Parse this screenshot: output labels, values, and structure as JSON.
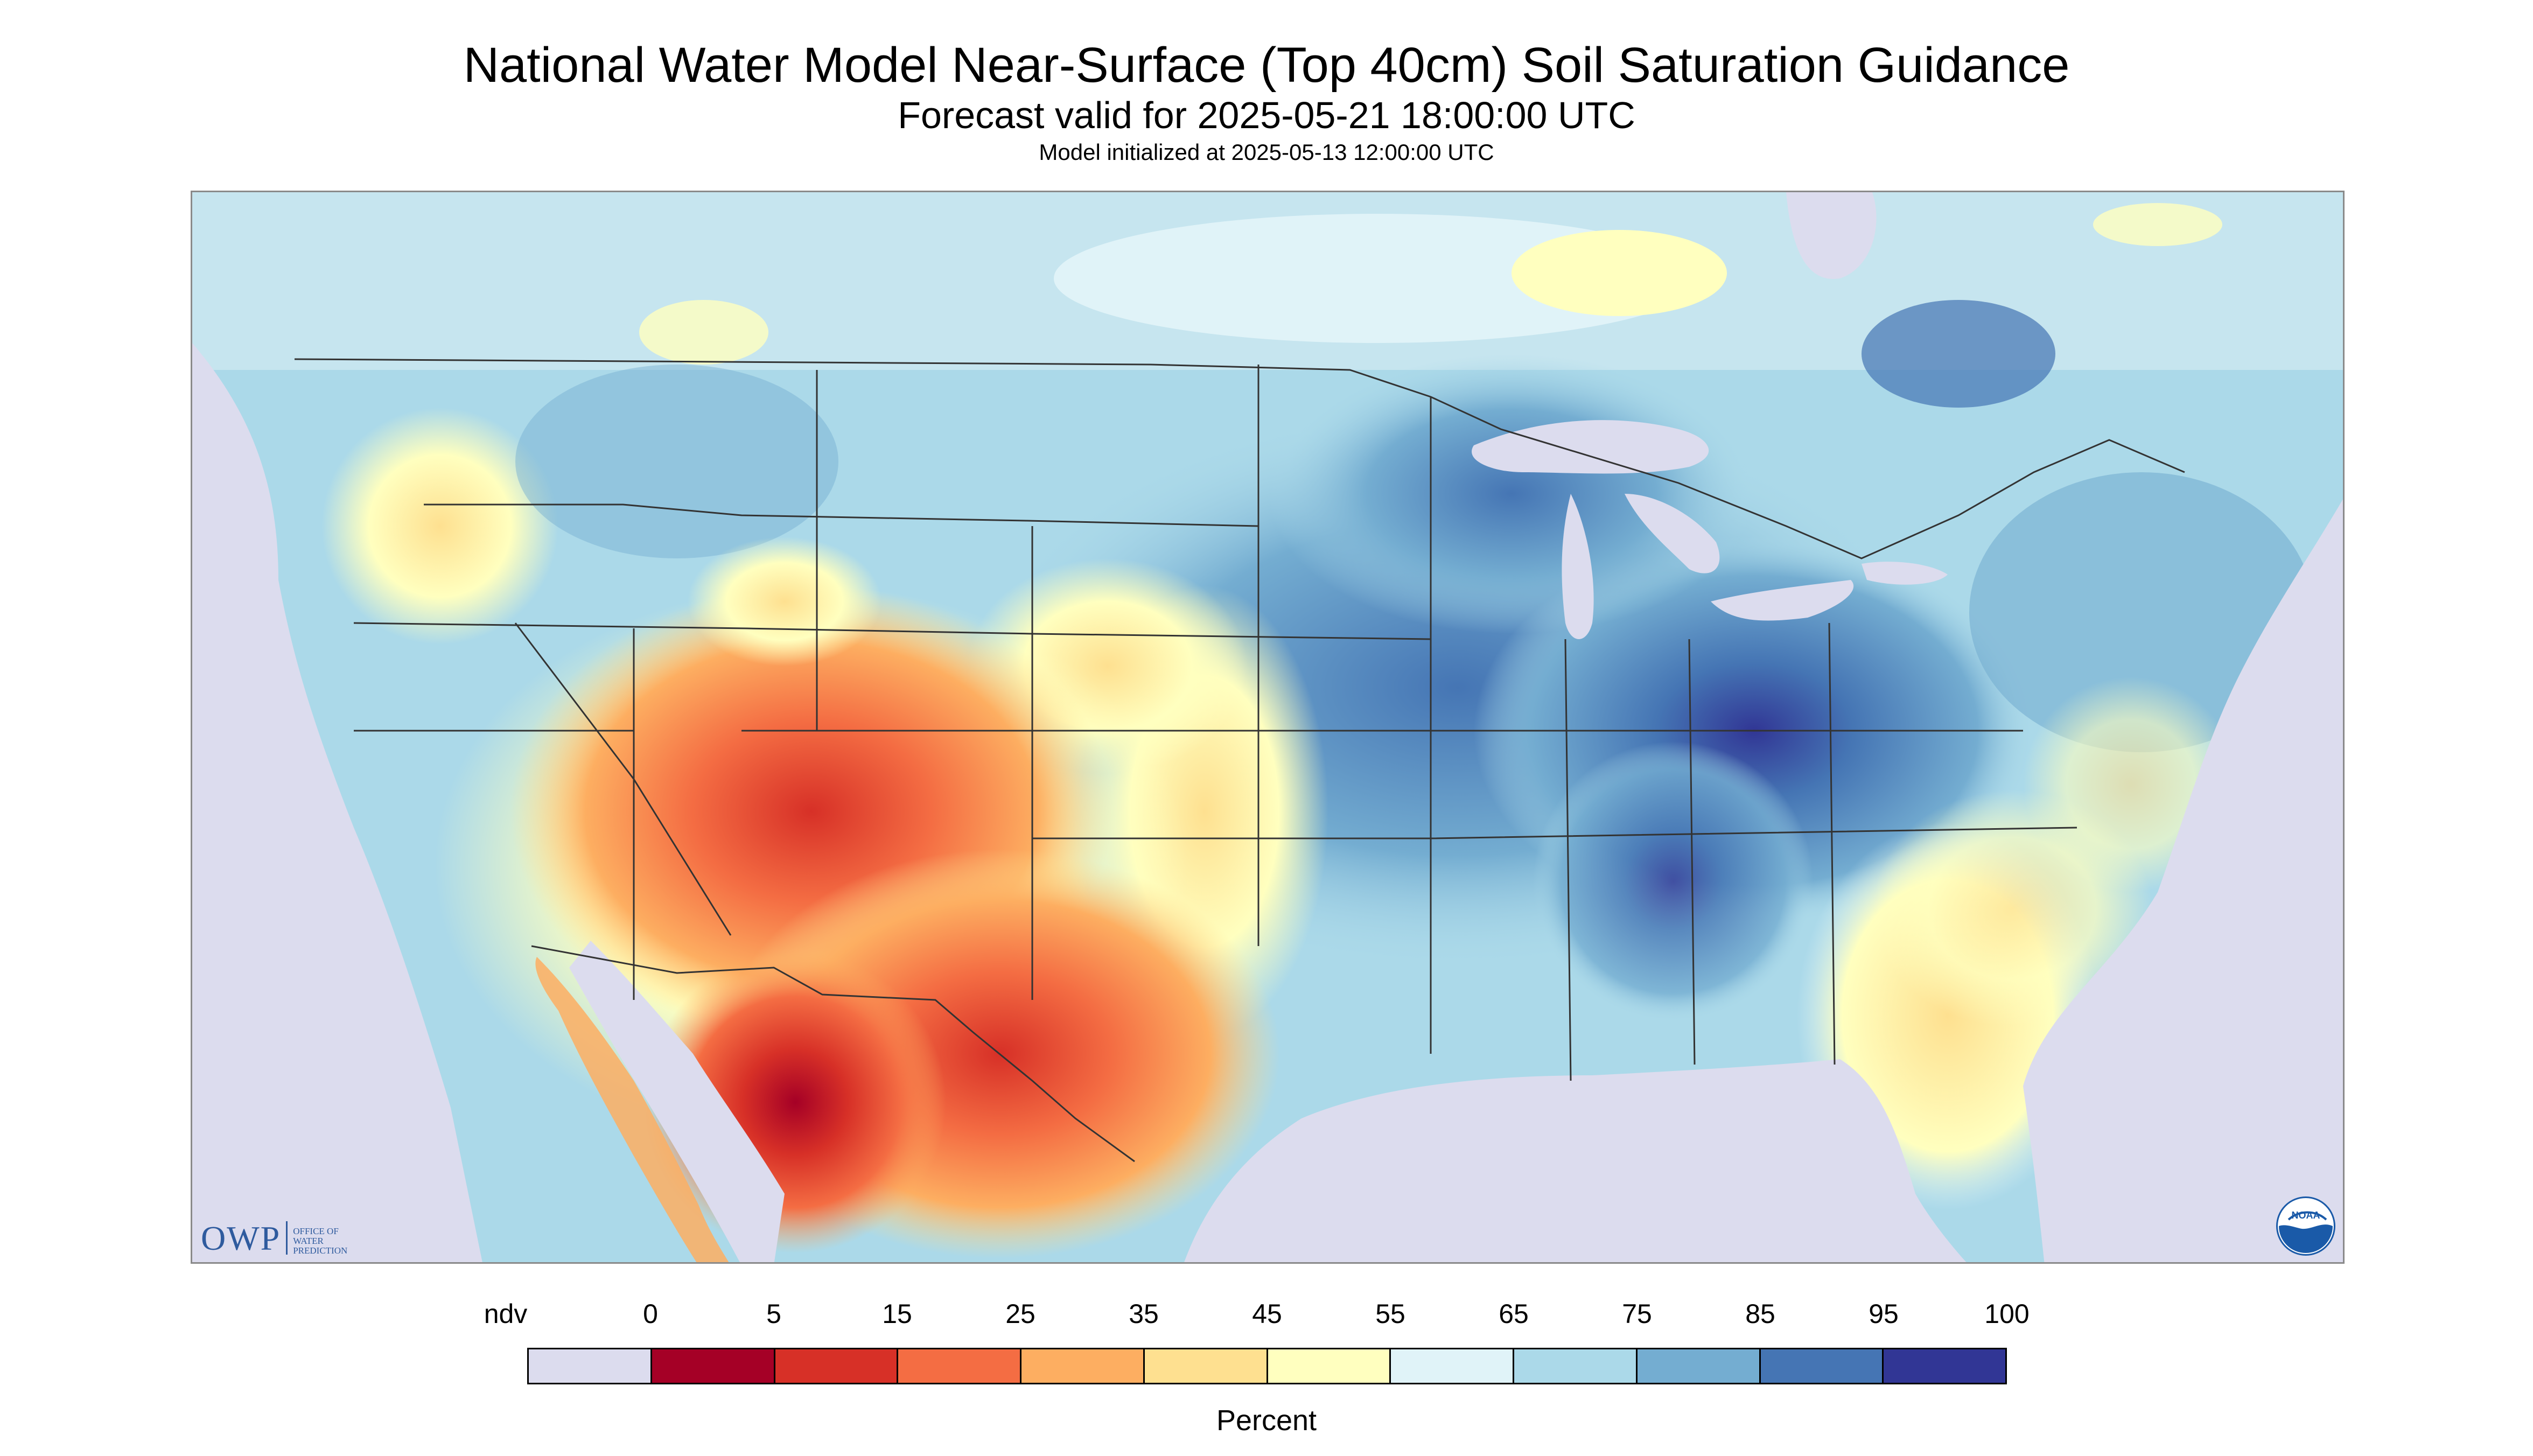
{
  "title": "National Water Model Near-Surface (Top 40cm) Soil Saturation Guidance",
  "subtitle": "Forecast valid for 2025-05-21 18:00:00 UTC",
  "init_line": "Model initialized at 2025-05-13 12:00:00 UTC",
  "logos": {
    "owp_abbrev": "OWP",
    "owp_full": [
      "OFFICE OF",
      "WATER",
      "PREDICTION"
    ],
    "noaa": "NOAA"
  },
  "legend": {
    "units_label": "Percent",
    "tick_labels": [
      "ndv",
      "0",
      "5",
      "15",
      "25",
      "35",
      "45",
      "55",
      "65",
      "75",
      "85",
      "95",
      "100"
    ],
    "colors": [
      "#dcdcee",
      "#a50026",
      "#d73027",
      "#f46d43",
      "#fdae61",
      "#fee090",
      "#ffffbf",
      "#e0f3f8",
      "#abd9e9",
      "#74add1",
      "#4575b4",
      "#313695"
    ]
  },
  "map": {
    "nodata_color": "#dcdcee",
    "ocean_color": "#dcdcee",
    "border_color": "#333333"
  }
}
